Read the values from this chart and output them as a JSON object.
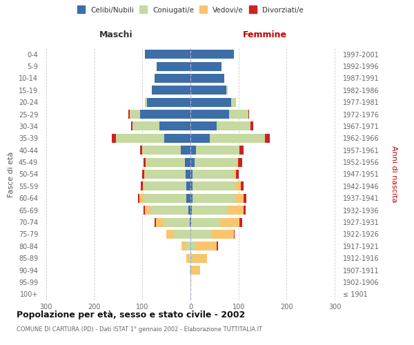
{
  "age_groups": [
    "100+",
    "95-99",
    "90-94",
    "85-89",
    "80-84",
    "75-79",
    "70-74",
    "65-69",
    "60-64",
    "55-59",
    "50-54",
    "45-49",
    "40-44",
    "35-39",
    "30-34",
    "25-29",
    "20-24",
    "15-19",
    "10-14",
    "5-9",
    "0-4"
  ],
  "birth_years": [
    "≤ 1901",
    "1902-1906",
    "1907-1911",
    "1912-1916",
    "1917-1921",
    "1922-1926",
    "1927-1931",
    "1932-1936",
    "1937-1941",
    "1942-1946",
    "1947-1951",
    "1952-1956",
    "1957-1961",
    "1962-1966",
    "1967-1971",
    "1972-1976",
    "1977-1981",
    "1982-1986",
    "1987-1991",
    "1992-1996",
    "1997-2001"
  ],
  "male": {
    "celibe": [
      0,
      0,
      0,
      0,
      0,
      0,
      2,
      5,
      8,
      8,
      10,
      12,
      20,
      55,
      65,
      105,
      90,
      80,
      75,
      70,
      95
    ],
    "coniugato": [
      0,
      0,
      1,
      3,
      8,
      35,
      55,
      78,
      90,
      88,
      85,
      80,
      80,
      100,
      55,
      20,
      5,
      0,
      0,
      0,
      0
    ],
    "vedovo": [
      0,
      0,
      1,
      5,
      10,
      15,
      15,
      12,
      8,
      3,
      1,
      1,
      0,
      0,
      0,
      2,
      0,
      0,
      0,
      0,
      0
    ],
    "divorziato": [
      0,
      0,
      0,
      0,
      0,
      0,
      2,
      2,
      3,
      5,
      5,
      5,
      5,
      8,
      3,
      2,
      0,
      0,
      0,
      0,
      0
    ]
  },
  "female": {
    "nubile": [
      0,
      0,
      0,
      0,
      0,
      0,
      2,
      3,
      5,
      5,
      5,
      8,
      12,
      40,
      55,
      80,
      85,
      75,
      70,
      65,
      90
    ],
    "coniugata": [
      0,
      0,
      2,
      5,
      10,
      45,
      60,
      75,
      88,
      90,
      85,
      88,
      90,
      115,
      70,
      40,
      10,
      2,
      0,
      0,
      0
    ],
    "vedova": [
      0,
      2,
      18,
      30,
      45,
      45,
      40,
      32,
      18,
      10,
      5,
      3,
      0,
      0,
      0,
      0,
      0,
      0,
      0,
      0,
      0
    ],
    "divorziata": [
      0,
      0,
      0,
      0,
      2,
      2,
      5,
      5,
      5,
      5,
      5,
      8,
      8,
      10,
      5,
      2,
      0,
      0,
      0,
      0,
      0
    ]
  },
  "color_celibe": "#3d6ea8",
  "color_coniugato": "#c5d9a0",
  "color_vedovo": "#f8c56d",
  "color_divorziato": "#cc2222",
  "title": "Popolazione per età, sesso e stato civile - 2002",
  "subtitle": "COMUNE DI CARTURA (PD) - Dati ISTAT 1° gennaio 2002 - Elaborazione TUTTITALIA.IT",
  "xlabel_left": "Maschi",
  "xlabel_right": "Femmine",
  "ylabel_left": "Fasce di età",
  "ylabel_right": "Anni di nascita",
  "xlim": 310,
  "background_color": "#ffffff",
  "grid_color": "#cccccc"
}
